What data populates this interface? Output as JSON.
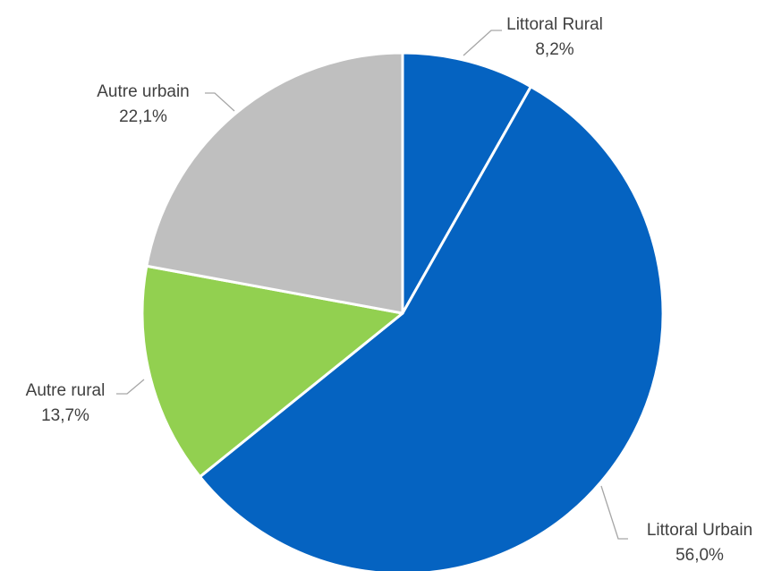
{
  "chart_data": {
    "type": "pie",
    "title": "",
    "start_angle_deg": 0,
    "direction": "clockwise",
    "slices": [
      {
        "label": "Littoral Rural",
        "value": 8.2,
        "display": "8,2%",
        "color": "#0563c1"
      },
      {
        "label": "Littoral Urbain",
        "value": 56.0,
        "display": "56,0%",
        "color": "#0563c1"
      },
      {
        "label": "Autre rural",
        "value": 13.7,
        "display": "13,7%",
        "color": "#92d050"
      },
      {
        "label": "Autre urbain",
        "value": 22.1,
        "display": "22,1%",
        "color": "#bfbfbf"
      }
    ],
    "legend": "none",
    "data_labels": "outside-with-leader-lines"
  }
}
